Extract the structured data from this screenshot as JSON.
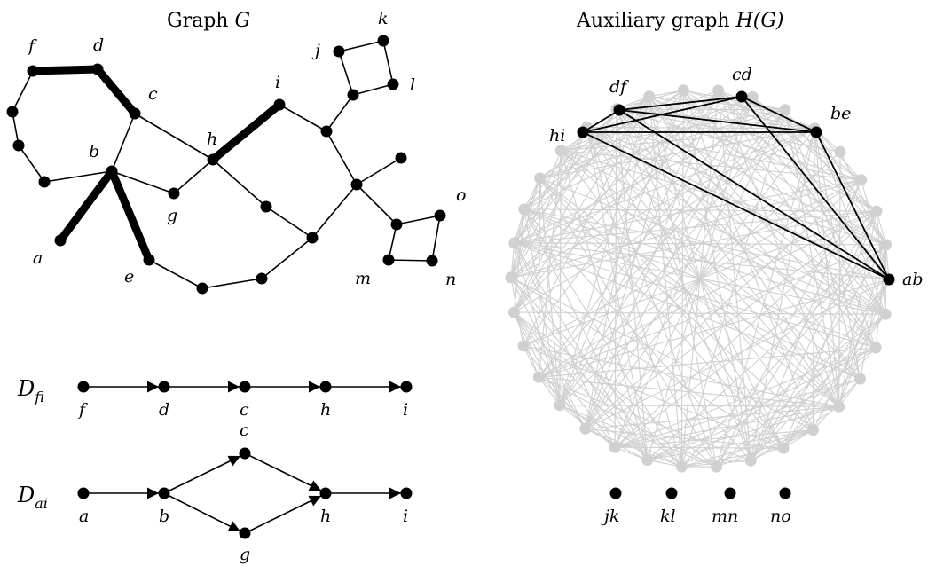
{
  "graph_g": {
    "title_text": "Graph ",
    "title_math": "G",
    "labels": {
      "a": "a",
      "b": "b",
      "c": "c",
      "d": "d",
      "e": "e",
      "f": "f",
      "g": "g",
      "h": "h",
      "i": "i",
      "j": "j",
      "k": "k",
      "l": "l",
      "m": "m",
      "n": "n",
      "o": "o"
    }
  },
  "aux_graph": {
    "title_text": "Auxiliary graph ",
    "title_math": "H(G)",
    "labels": {
      "df": "df",
      "cd": "cd",
      "be": "be",
      "hi": "hi",
      "ab": "ab"
    },
    "isolated": [
      "jk",
      "kl",
      "mn",
      "no"
    ]
  },
  "d_fi": {
    "name": "D",
    "sub": "fi",
    "nodes": [
      "f",
      "d",
      "c",
      "h",
      "i"
    ]
  },
  "d_ai": {
    "name": "D",
    "sub": "ai",
    "nodes": {
      "a": "a",
      "b": "b",
      "c": "c",
      "g": "g",
      "h": "h",
      "i": "i"
    }
  },
  "colors": {
    "ink": "#000000",
    "faded": "#d0d0d0"
  }
}
